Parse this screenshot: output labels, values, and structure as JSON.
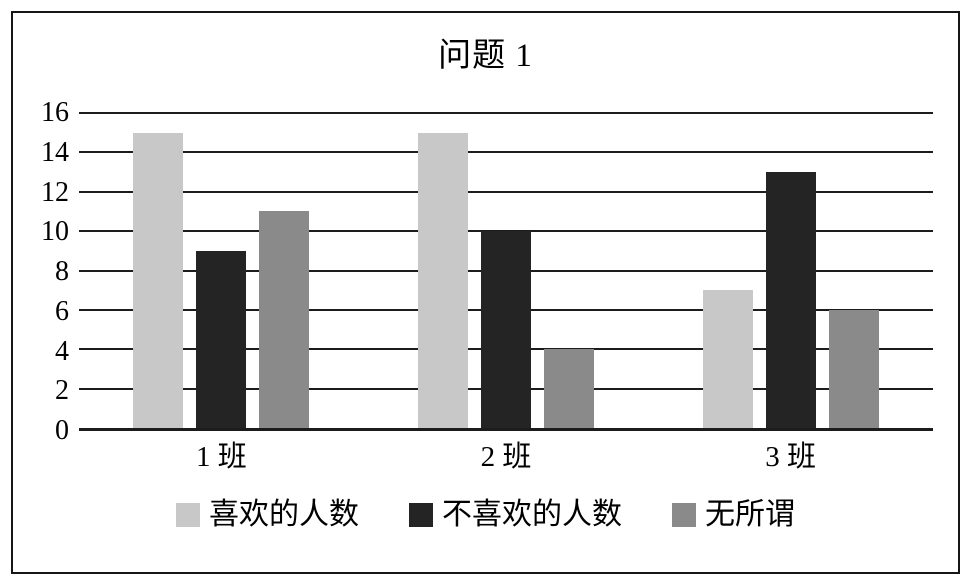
{
  "chart_data": {
    "type": "bar",
    "title": "问题 1",
    "categories": [
      "1 班",
      "2 班",
      "3 班"
    ],
    "series": [
      {
        "name": "喜欢的人数",
        "color": "#c8c8c8",
        "values": [
          15,
          15,
          7
        ]
      },
      {
        "name": "不喜欢的人数",
        "color": "#242424",
        "values": [
          9,
          10,
          13
        ]
      },
      {
        "name": "无所谓",
        "color": "#8a8a8a",
        "values": [
          11,
          4,
          6
        ]
      }
    ],
    "ylim": [
      0,
      16
    ],
    "ytick_step": 2,
    "yticks": [
      0,
      2,
      4,
      6,
      8,
      10,
      12,
      14,
      16
    ],
    "grid": true,
    "legend_position": "bottom",
    "axis_color": "#1c1c1c",
    "frame_border_color": "#161616"
  }
}
